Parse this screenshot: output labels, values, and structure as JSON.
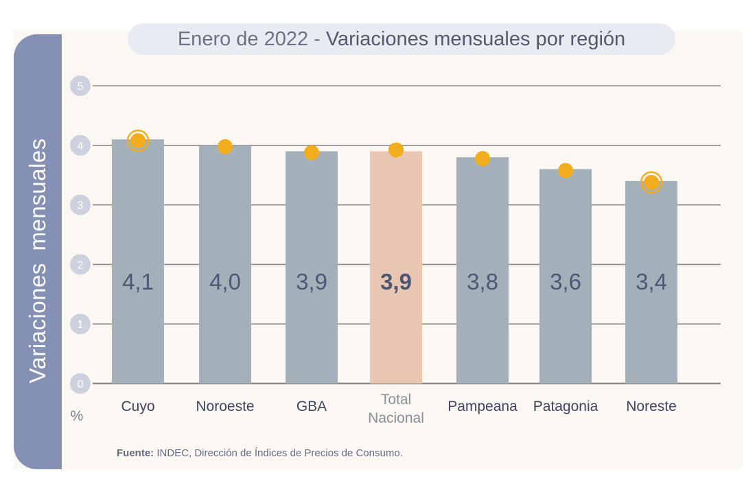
{
  "title": {
    "part1": "Enero de 2022 - ",
    "part2": "Variaciones mensuales por región"
  },
  "y_axis_title": "Variaciones mensuales",
  "y_unit": "%",
  "source": {
    "label": "Fuente:",
    "text": " INDEC, Dirección de Índices de Precios de Consumo."
  },
  "colors": {
    "bar": "#a3b0b9",
    "bar_highlight": "#e8c6b2",
    "marker": "#f2ad1f",
    "value_text": "#4d5773",
    "category_text": "#3f4560",
    "category_highlight_text": "#8a8d98",
    "grid": "#8a8a8a",
    "tick_circle": "#cdd1dd",
    "tick_text": "#ffffff"
  },
  "chart_data": {
    "type": "bar",
    "categories": [
      {
        "name": "Cuyo",
        "lines": [
          "Cuyo"
        ]
      },
      {
        "name": "Noroeste",
        "lines": [
          "Noroeste"
        ]
      },
      {
        "name": "GBA",
        "lines": [
          "GBA"
        ]
      },
      {
        "name": "Total Nacional",
        "lines": [
          "Total",
          "Nacional"
        ]
      },
      {
        "name": "Pampeana",
        "lines": [
          "Pampeana"
        ]
      },
      {
        "name": "Patagonia",
        "lines": [
          "Patagonia"
        ]
      },
      {
        "name": "Noreste",
        "lines": [
          "Noreste"
        ]
      }
    ],
    "values": [
      4.1,
      4.0,
      3.9,
      3.9,
      3.8,
      3.6,
      3.4
    ],
    "value_labels": [
      "4,1",
      "4,0",
      "3,9",
      "3,9",
      "3,8",
      "3,6",
      "3,4"
    ],
    "highlight_index": 3,
    "ringed_indices": [
      0,
      6
    ],
    "ylim": [
      0,
      5
    ],
    "yticks": [
      0,
      1,
      2,
      3,
      4,
      5
    ],
    "ytick_labels": [
      "0",
      "1",
      "2",
      "3",
      "4",
      "5"
    ],
    "grid": true
  }
}
